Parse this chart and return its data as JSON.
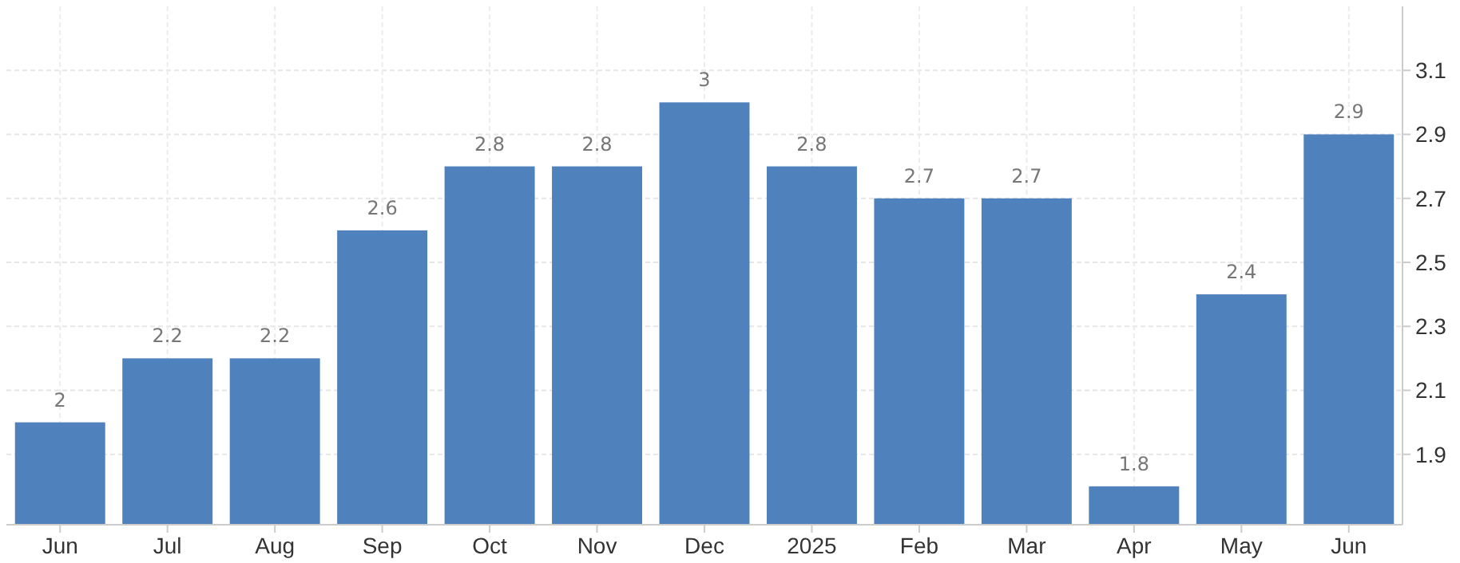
{
  "chart_data": {
    "type": "bar",
    "categories": [
      "Jun",
      "Jul",
      "Aug",
      "Sep",
      "Oct",
      "Nov",
      "Dec",
      "2025",
      "Feb",
      "Mar",
      "Apr",
      "May",
      "Jun"
    ],
    "values": [
      2,
      2.2,
      2.2,
      2.6,
      2.8,
      2.8,
      3,
      2.8,
      2.7,
      2.7,
      1.8,
      2.4,
      2.9
    ],
    "color": "#4f81bd",
    "ylim": [
      1.68,
      3.3
    ],
    "yticks": [
      1.9,
      2.1,
      2.3,
      2.5,
      2.7,
      2.9,
      3.1
    ],
    "grid": true,
    "data_labels": true
  }
}
